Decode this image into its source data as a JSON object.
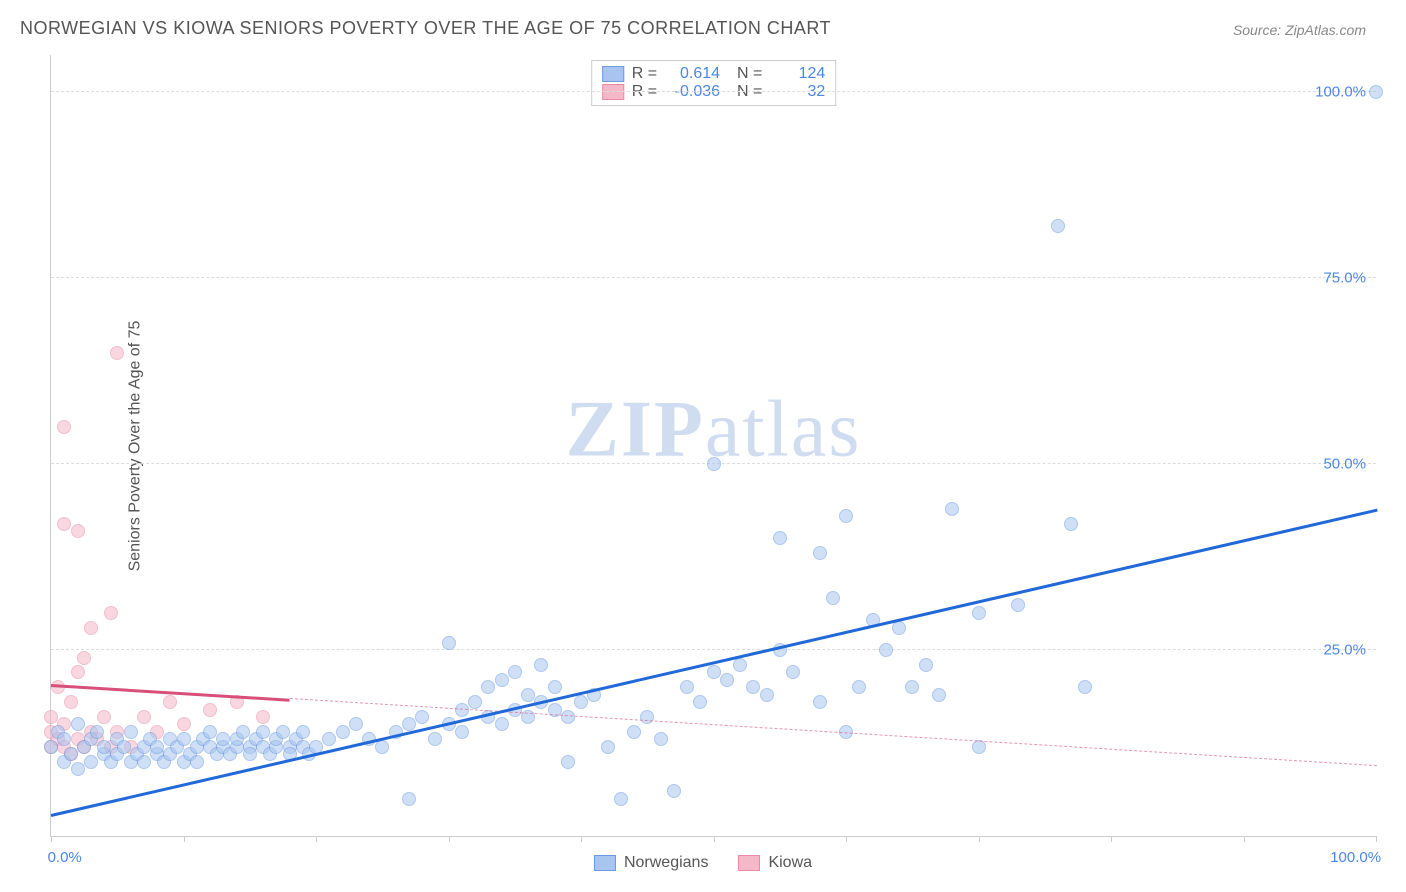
{
  "chart": {
    "title": "NORWEGIAN VS KIOWA SENIORS POVERTY OVER THE AGE OF 75 CORRELATION CHART",
    "source": "Source: ZipAtlas.com",
    "y_axis_label": "Seniors Poverty Over the Age of 75",
    "watermark_bold": "ZIP",
    "watermark_light": "atlas",
    "type": "scatter",
    "xlim": [
      0,
      100
    ],
    "ylim": [
      0,
      105
    ],
    "x_tick_positions": [
      0,
      10,
      20,
      30,
      40,
      50,
      60,
      70,
      80,
      90,
      100
    ],
    "x_tick_labels": {
      "0": "0.0%",
      "100": "100.0%"
    },
    "y_gridlines": [
      25,
      50,
      75,
      100
    ],
    "y_tick_labels": {
      "25": "25.0%",
      "50": "50.0%",
      "75": "75.0%",
      "100": "100.0%"
    },
    "background_color": "#ffffff",
    "grid_color": "#dddddd",
    "axis_color": "#cccccc",
    "point_radius": 7,
    "point_opacity": 0.55,
    "title_fontsize": 18,
    "label_fontsize": 16,
    "tick_fontsize": 15,
    "tick_color": "#4a86e8"
  },
  "series": {
    "norwegians": {
      "label": "Norwegians",
      "color_fill": "#a8c5f0",
      "color_stroke": "#6b9ae0",
      "trend_color": "#2168d8",
      "trend_width": 2.5,
      "trend_style": "solid",
      "R": "0.614",
      "N": "124",
      "trend": {
        "x1": 0,
        "y1": 3,
        "x2": 100,
        "y2": 44
      },
      "points": [
        [
          0,
          12
        ],
        [
          0.5,
          14
        ],
        [
          1,
          10
        ],
        [
          1,
          13
        ],
        [
          1.5,
          11
        ],
        [
          2,
          15
        ],
        [
          2,
          9
        ],
        [
          2.5,
          12
        ],
        [
          3,
          13
        ],
        [
          3,
          10
        ],
        [
          3.5,
          14
        ],
        [
          4,
          11
        ],
        [
          4,
          12
        ],
        [
          4.5,
          10
        ],
        [
          5,
          13
        ],
        [
          5,
          11
        ],
        [
          5.5,
          12
        ],
        [
          6,
          10
        ],
        [
          6,
          14
        ],
        [
          6.5,
          11
        ],
        [
          7,
          12
        ],
        [
          7,
          10
        ],
        [
          7.5,
          13
        ],
        [
          8,
          11
        ],
        [
          8,
          12
        ],
        [
          8.5,
          10
        ],
        [
          9,
          13
        ],
        [
          9,
          11
        ],
        [
          9.5,
          12
        ],
        [
          10,
          10
        ],
        [
          10,
          13
        ],
        [
          10.5,
          11
        ],
        [
          11,
          12
        ],
        [
          11,
          10
        ],
        [
          11.5,
          13
        ],
        [
          12,
          12
        ],
        [
          12,
          14
        ],
        [
          12.5,
          11
        ],
        [
          13,
          12
        ],
        [
          13,
          13
        ],
        [
          13.5,
          11
        ],
        [
          14,
          12
        ],
        [
          14,
          13
        ],
        [
          14.5,
          14
        ],
        [
          15,
          12
        ],
        [
          15,
          11
        ],
        [
          15.5,
          13
        ],
        [
          16,
          12
        ],
        [
          16,
          14
        ],
        [
          16.5,
          11
        ],
        [
          17,
          12
        ],
        [
          17,
          13
        ],
        [
          17.5,
          14
        ],
        [
          18,
          12
        ],
        [
          18,
          11
        ],
        [
          18.5,
          13
        ],
        [
          19,
          12
        ],
        [
          19,
          14
        ],
        [
          19.5,
          11
        ],
        [
          20,
          12
        ],
        [
          21,
          13
        ],
        [
          22,
          14
        ],
        [
          23,
          15
        ],
        [
          24,
          13
        ],
        [
          25,
          12
        ],
        [
          26,
          14
        ],
        [
          27,
          15
        ],
        [
          27,
          5
        ],
        [
          28,
          16
        ],
        [
          29,
          13
        ],
        [
          30,
          15
        ],
        [
          30,
          26
        ],
        [
          31,
          14
        ],
        [
          31,
          17
        ],
        [
          32,
          18
        ],
        [
          33,
          16
        ],
        [
          33,
          20
        ],
        [
          34,
          15
        ],
        [
          34,
          21
        ],
        [
          35,
          17
        ],
        [
          35,
          22
        ],
        [
          36,
          16
        ],
        [
          36,
          19
        ],
        [
          37,
          18
        ],
        [
          37,
          23
        ],
        [
          38,
          17
        ],
        [
          38,
          20
        ],
        [
          39,
          16
        ],
        [
          39,
          10
        ],
        [
          40,
          18
        ],
        [
          41,
          19
        ],
        [
          42,
          12
        ],
        [
          43,
          5
        ],
        [
          44,
          14
        ],
        [
          45,
          16
        ],
        [
          46,
          13
        ],
        [
          47,
          6
        ],
        [
          48,
          20
        ],
        [
          49,
          18
        ],
        [
          50,
          22
        ],
        [
          50,
          50
        ],
        [
          51,
          21
        ],
        [
          52,
          23
        ],
        [
          53,
          20
        ],
        [
          54,
          19
        ],
        [
          55,
          25
        ],
        [
          55,
          40
        ],
        [
          56,
          22
        ],
        [
          58,
          18
        ],
        [
          58,
          38
        ],
        [
          59,
          32
        ],
        [
          60,
          14
        ],
        [
          60,
          43
        ],
        [
          61,
          20
        ],
        [
          62,
          29
        ],
        [
          63,
          25
        ],
        [
          64,
          28
        ],
        [
          65,
          20
        ],
        [
          66,
          23
        ],
        [
          67,
          19
        ],
        [
          68,
          44
        ],
        [
          70,
          30
        ],
        [
          70,
          12
        ],
        [
          73,
          31
        ],
        [
          76,
          82
        ],
        [
          77,
          42
        ],
        [
          78,
          20
        ],
        [
          100,
          100
        ]
      ]
    },
    "kiowa": {
      "label": "Kiowa",
      "color_fill": "#f5b8c8",
      "color_stroke": "#e88aa5",
      "trend_color": "#d84f7a",
      "trend_width_solid": 2.5,
      "trend_width_dash": 1.5,
      "trend_solid_fraction": 0.18,
      "R": "-0.036",
      "N": "32",
      "trend": {
        "x1": 0,
        "y1": 20.5,
        "x2": 100,
        "y2": 9.5
      },
      "points": [
        [
          0,
          12
        ],
        [
          0,
          14
        ],
        [
          0,
          16
        ],
        [
          0.5,
          13
        ],
        [
          0.5,
          20
        ],
        [
          1,
          12
        ],
        [
          1,
          15
        ],
        [
          1,
          42
        ],
        [
          1,
          55
        ],
        [
          1.5,
          11
        ],
        [
          1.5,
          18
        ],
        [
          2,
          13
        ],
        [
          2,
          22
        ],
        [
          2,
          41
        ],
        [
          2.5,
          12
        ],
        [
          2.5,
          24
        ],
        [
          3,
          14
        ],
        [
          3,
          28
        ],
        [
          3.5,
          13
        ],
        [
          4,
          16
        ],
        [
          4.5,
          12
        ],
        [
          4.5,
          30
        ],
        [
          5,
          14
        ],
        [
          5,
          65
        ],
        [
          6,
          12
        ],
        [
          7,
          16
        ],
        [
          8,
          14
        ],
        [
          9,
          18
        ],
        [
          10,
          15
        ],
        [
          12,
          17
        ],
        [
          14,
          18
        ],
        [
          16,
          16
        ]
      ]
    }
  },
  "legend": {
    "items": [
      {
        "key": "norwegians",
        "label": "Norwegians"
      },
      {
        "key": "kiowa",
        "label": "Kiowa"
      }
    ]
  }
}
